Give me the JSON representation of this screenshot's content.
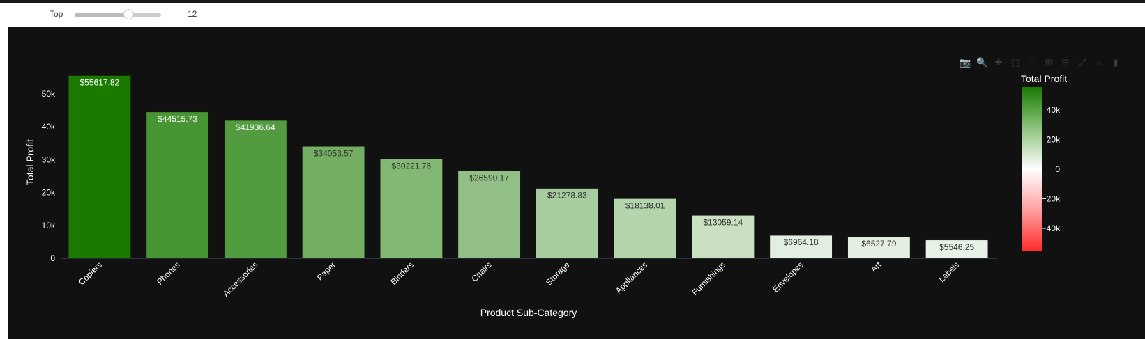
{
  "controls": {
    "label": "Top",
    "value": "12",
    "slider_fraction": 0.63
  },
  "modebar": [
    {
      "name": "camera-icon",
      "glyph": "📷"
    },
    {
      "name": "zoom-icon",
      "glyph": "🔍"
    },
    {
      "name": "pan-icon",
      "glyph": "✚"
    },
    {
      "name": "box-select-icon",
      "glyph": "⬚"
    },
    {
      "name": "lasso-select-icon",
      "glyph": "◌"
    },
    {
      "name": "zoom-in-icon",
      "glyph": "⊞"
    },
    {
      "name": "zoom-out-icon",
      "glyph": "⊟"
    },
    {
      "name": "autoscale-icon",
      "glyph": "⤢"
    },
    {
      "name": "reset-axes-icon",
      "glyph": "⌂"
    },
    {
      "name": "plotly-logo-icon",
      "glyph": "▮"
    }
  ],
  "chart_data": {
    "type": "bar",
    "xlabel": "Product Sub-Category",
    "ylabel": "Total Profit",
    "categories": [
      "Copiers",
      "Phones",
      "Accessories",
      "Paper",
      "Binders",
      "Chairs",
      "Storage",
      "Appliances",
      "Furnishings",
      "Envelopes",
      "Art",
      "Labels"
    ],
    "values": [
      55617.82,
      44515.73,
      41936.64,
      34053.57,
      30221.76,
      26590.17,
      21278.83,
      18138.01,
      13059.14,
      6964.18,
      6527.79,
      5546.25
    ],
    "data_labels": [
      "$55617.82",
      "$44515.73",
      "$41936.64",
      "$34053.57",
      "$30221.76",
      "$26590.17",
      "$21278.83",
      "$18138.01",
      "$13059.14",
      "$6964.18",
      "$6527.79",
      "$5546.25"
    ],
    "y_ticks": [
      {
        "v": 0,
        "label": "0"
      },
      {
        "v": 10000,
        "label": "10k"
      },
      {
        "v": 20000,
        "label": "20k"
      },
      {
        "v": 30000,
        "label": "30k"
      },
      {
        "v": 40000,
        "label": "40k"
      },
      {
        "v": 50000,
        "label": "50k"
      }
    ],
    "ylim": [
      0,
      58000
    ],
    "grid": false,
    "colorbar": {
      "title": "Total Profit",
      "range": [
        -55617.82,
        55617.82
      ],
      "ticks": [
        {
          "v": 40000,
          "label": "40k"
        },
        {
          "v": 20000,
          "label": "20k"
        },
        {
          "v": 0,
          "label": "0"
        },
        {
          "v": -20000,
          "label": "−20k"
        },
        {
          "v": -40000,
          "label": "−40k"
        }
      ],
      "colors": {
        "min": "#ff2a2a",
        "mid": "#ffffff",
        "max": "#1a7a00"
      }
    },
    "legend": "colorbar right"
  }
}
